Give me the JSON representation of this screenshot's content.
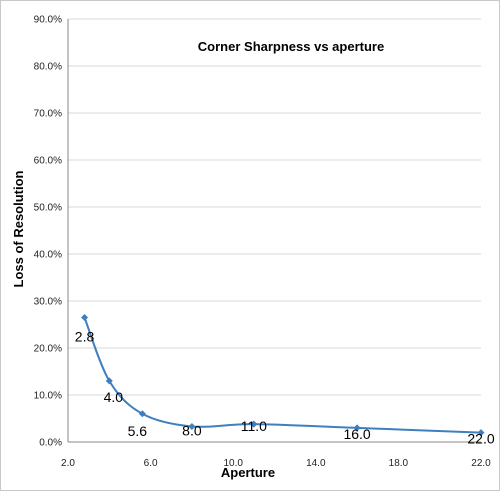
{
  "chart_data": {
    "type": "line",
    "title": "Corner Sharpness vs aperture",
    "xlabel": "Aperture",
    "ylabel": "Loss of Resolution",
    "xlim": [
      2.0,
      22.0
    ],
    "ylim": [
      0.0,
      90.0
    ],
    "x_ticks": [
      "2.0",
      "6.0",
      "10.0",
      "14.0",
      "18.0",
      "22.0"
    ],
    "y_ticks": [
      "0.0%",
      "10.0%",
      "20.0%",
      "30.0%",
      "40.0%",
      "50.0%",
      "60.0%",
      "70.0%",
      "80.0%",
      "90.0%"
    ],
    "grid": "horizontal",
    "color": "#3f7fc0",
    "series": [
      {
        "x": [
          2.8,
          4.0,
          5.6,
          8.0,
          11.0,
          16.0,
          22.0
        ],
        "y": [
          26.5,
          13.0,
          6.0,
          3.3,
          3.8,
          3.0,
          2.0
        ],
        "labels": [
          "2.8",
          "4.0",
          "5.6",
          "8.0",
          "11.0",
          "16.0",
          "22.0"
        ]
      }
    ]
  }
}
